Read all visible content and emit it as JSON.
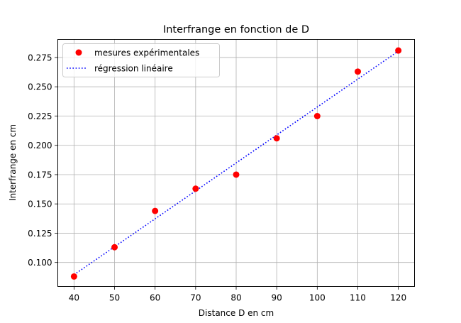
{
  "chart_data": {
    "type": "scatter",
    "title": "Interfrange en fonction de D",
    "xlabel": "Distance D en cm",
    "ylabel": "Interfrange en cm",
    "xlim": [
      36,
      124
    ],
    "ylim": [
      0.0795,
      0.2905
    ],
    "xticks": [
      40,
      50,
      60,
      70,
      80,
      90,
      100,
      110,
      120
    ],
    "xtick_labels": [
      "40",
      "50",
      "60",
      "70",
      "80",
      "90",
      "100",
      "110",
      "120"
    ],
    "yticks": [
      0.1,
      0.125,
      0.15,
      0.175,
      0.2,
      0.225,
      0.25,
      0.275
    ],
    "ytick_labels": [
      "0.100",
      "0.125",
      "0.150",
      "0.175",
      "0.200",
      "0.225",
      "0.250",
      "0.275"
    ],
    "grid": true,
    "legend_position": "top-left",
    "series": [
      {
        "name": "mesures expérimentales",
        "kind": "points",
        "color": "#ff0000",
        "x": [
          40,
          50,
          60,
          70,
          80,
          90,
          100,
          110,
          120
        ],
        "y": [
          0.088,
          0.113,
          0.144,
          0.163,
          0.175,
          0.206,
          0.225,
          0.263,
          0.281
        ]
      },
      {
        "name": "régression linéaire",
        "kind": "line",
        "style": "dotted",
        "color": "#0000ff",
        "x": [
          40,
          120
        ],
        "y": [
          0.0895,
          0.2805
        ]
      }
    ]
  }
}
